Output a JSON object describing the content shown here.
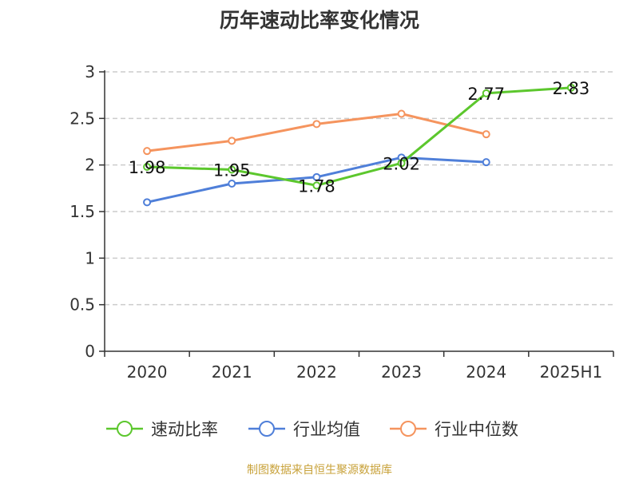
{
  "title": "历年速动比率变化情况",
  "source_note": "制图数据来自恒生聚源数据库",
  "colors": {
    "speed_ratio": "#5cc72d",
    "industry_mean": "#4f7fd9",
    "industry_median": "#f5945e",
    "grid": "#cccccc",
    "axis": "#333333"
  },
  "chart_data": {
    "type": "line",
    "title": "历年速动比率变化情况",
    "categories": [
      "2020",
      "2021",
      "2022",
      "2023",
      "2024",
      "2025H1"
    ],
    "y_ticks": [
      "0",
      "0.5",
      "1",
      "1.5",
      "2",
      "2.5",
      "3"
    ],
    "ylim": [
      0,
      3
    ],
    "grid": "horizontal dashed",
    "legend_position": "bottom",
    "series": [
      {
        "name": "速动比率",
        "color_key": "speed_ratio",
        "values": [
          1.98,
          1.95,
          1.78,
          2.02,
          2.77,
          2.83
        ],
        "labels": [
          "1.98",
          "1.95",
          "1.78",
          "2.02",
          "2.77",
          "2.83"
        ]
      },
      {
        "name": "行业均值",
        "color_key": "industry_mean",
        "values": [
          1.6,
          1.8,
          1.87,
          2.08,
          2.03,
          null
        ]
      },
      {
        "name": "行业中位数",
        "color_key": "industry_median",
        "values": [
          2.15,
          2.26,
          2.44,
          2.55,
          2.33,
          null
        ]
      }
    ]
  }
}
